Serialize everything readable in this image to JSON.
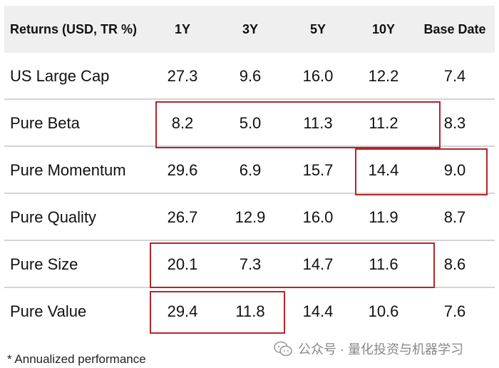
{
  "header": [
    "Returns (USD, TR %)",
    "1Y",
    "3Y",
    "5Y",
    "10Y",
    "Base Date"
  ],
  "rows": [
    {
      "name": "US Large Cap",
      "values": [
        "27.3",
        "9.6",
        "16.0",
        "12.2",
        "7.4"
      ]
    },
    {
      "name": "Pure Beta",
      "values": [
        "8.2",
        "5.0",
        "11.3",
        "11.2",
        "8.3"
      ]
    },
    {
      "name": "Pure Momentum",
      "values": [
        "29.6",
        "6.9",
        "15.7",
        "14.4",
        "9.0"
      ]
    },
    {
      "name": "Pure Quality",
      "values": [
        "26.7",
        "12.9",
        "16.0",
        "11.9",
        "8.7"
      ]
    },
    {
      "name": "Pure Size",
      "values": [
        "20.1",
        "7.3",
        "14.7",
        "11.6",
        "8.6"
      ]
    },
    {
      "name": "Pure Value",
      "values": [
        "29.4",
        "11.8",
        "14.4",
        "10.6",
        "7.6"
      ]
    }
  ],
  "footnote": "* Annualized performance",
  "watermark": "公众号 · 量化投资与机器学习",
  "colors": {
    "highlight_border": "#b3262b",
    "header_bg": "#efefef"
  }
}
